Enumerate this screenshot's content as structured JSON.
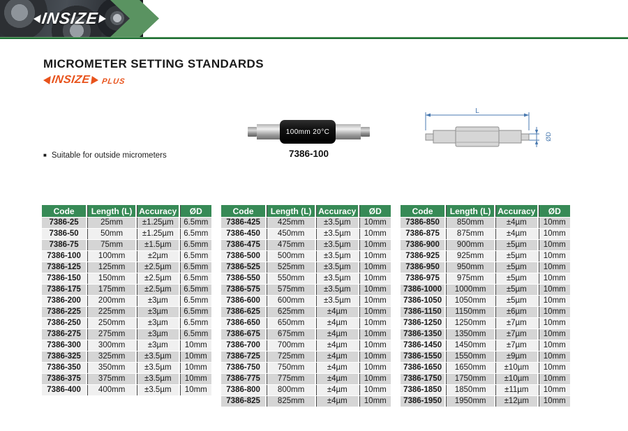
{
  "brand": {
    "name": "INSIZE",
    "plus_suffix": "PLUS",
    "colors": {
      "chevron_green": "#5a9361",
      "rule_green": "#1c6f33",
      "orange": "#e8531c"
    }
  },
  "page": {
    "title": "MICROMETER SETTING STANDARDS",
    "feature_bullet": "Suitable for outside micrometers",
    "bullet_glyph": "■"
  },
  "product": {
    "body_label": "100mm 20°C",
    "caption": "7386-100"
  },
  "diagram": {
    "length_label": "L",
    "diameter_label": "ØD",
    "dim_color": "#4a7ab0"
  },
  "columns": [
    "Code",
    "Length (L)",
    "Accuracy",
    "ØD"
  ],
  "table_colors": {
    "header_green": "#378a56",
    "row_odd": "#d5d5d5",
    "row_even": "#f0f0f0"
  },
  "tables": [
    {
      "rows": [
        [
          "7386-25",
          "25mm",
          "±1.25µm",
          "6.5mm"
        ],
        [
          "7386-50",
          "50mm",
          "±1.25µm",
          "6.5mm"
        ],
        [
          "7386-75",
          "75mm",
          "±1.5µm",
          "6.5mm"
        ],
        [
          "7386-100",
          "100mm",
          "±2µm",
          "6.5mm"
        ],
        [
          "7386-125",
          "125mm",
          "±2.5µm",
          "6.5mm"
        ],
        [
          "7386-150",
          "150mm",
          "±2.5µm",
          "6.5mm"
        ],
        [
          "7386-175",
          "175mm",
          "±2.5µm",
          "6.5mm"
        ],
        [
          "7386-200",
          "200mm",
          "±3µm",
          "6.5mm"
        ],
        [
          "7386-225",
          "225mm",
          "±3µm",
          "6.5mm"
        ],
        [
          "7386-250",
          "250mm",
          "±3µm",
          "6.5mm"
        ],
        [
          "7386-275",
          "275mm",
          "±3µm",
          "6.5mm"
        ],
        [
          "7386-300",
          "300mm",
          "±3µm",
          "10mm"
        ],
        [
          "7386-325",
          "325mm",
          "±3.5µm",
          "10mm"
        ],
        [
          "7386-350",
          "350mm",
          "±3.5µm",
          "10mm"
        ],
        [
          "7386-375",
          "375mm",
          "±3.5µm",
          "10mm"
        ],
        [
          "7386-400",
          "400mm",
          "±3.5µm",
          "10mm"
        ]
      ]
    },
    {
      "rows": [
        [
          "7386-425",
          "425mm",
          "±3.5µm",
          "10mm"
        ],
        [
          "7386-450",
          "450mm",
          "±3.5µm",
          "10mm"
        ],
        [
          "7386-475",
          "475mm",
          "±3.5µm",
          "10mm"
        ],
        [
          "7386-500",
          "500mm",
          "±3.5µm",
          "10mm"
        ],
        [
          "7386-525",
          "525mm",
          "±3.5µm",
          "10mm"
        ],
        [
          "7386-550",
          "550mm",
          "±3.5µm",
          "10mm"
        ],
        [
          "7386-575",
          "575mm",
          "±3.5µm",
          "10mm"
        ],
        [
          "7386-600",
          "600mm",
          "±3.5µm",
          "10mm"
        ],
        [
          "7386-625",
          "625mm",
          "±4µm",
          "10mm"
        ],
        [
          "7386-650",
          "650mm",
          "±4µm",
          "10mm"
        ],
        [
          "7386-675",
          "675mm",
          "±4µm",
          "10mm"
        ],
        [
          "7386-700",
          "700mm",
          "±4µm",
          "10mm"
        ],
        [
          "7386-725",
          "725mm",
          "±4µm",
          "10mm"
        ],
        [
          "7386-750",
          "750mm",
          "±4µm",
          "10mm"
        ],
        [
          "7386-775",
          "775mm",
          "±4µm",
          "10mm"
        ],
        [
          "7386-800",
          "800mm",
          "±4µm",
          "10mm"
        ],
        [
          "7386-825",
          "825mm",
          "±4µm",
          "10mm"
        ]
      ]
    },
    {
      "rows": [
        [
          "7386-850",
          "850mm",
          "±4µm",
          "10mm"
        ],
        [
          "7386-875",
          "875mm",
          "±4µm",
          "10mm"
        ],
        [
          "7386-900",
          "900mm",
          "±5µm",
          "10mm"
        ],
        [
          "7386-925",
          "925mm",
          "±5µm",
          "10mm"
        ],
        [
          "7386-950",
          "950mm",
          "±5µm",
          "10mm"
        ],
        [
          "7386-975",
          "975mm",
          "±5µm",
          "10mm"
        ],
        [
          "7386-1000",
          "1000mm",
          "±5µm",
          "10mm"
        ],
        [
          "7386-1050",
          "1050mm",
          "±5µm",
          "10mm"
        ],
        [
          "7386-1150",
          "1150mm",
          "±6µm",
          "10mm"
        ],
        [
          "7386-1250",
          "1250mm",
          "±7µm",
          "10mm"
        ],
        [
          "7386-1350",
          "1350mm",
          "±7µm",
          "10mm"
        ],
        [
          "7386-1450",
          "1450mm",
          "±7µm",
          "10mm"
        ],
        [
          "7386-1550",
          "1550mm",
          "±9µm",
          "10mm"
        ],
        [
          "7386-1650",
          "1650mm",
          "±10µm",
          "10mm"
        ],
        [
          "7386-1750",
          "1750mm",
          "±10µm",
          "10mm"
        ],
        [
          "7386-1850",
          "1850mm",
          "±11µm",
          "10mm"
        ],
        [
          "7386-1950",
          "1950mm",
          "±12µm",
          "10mm"
        ]
      ]
    }
  ]
}
